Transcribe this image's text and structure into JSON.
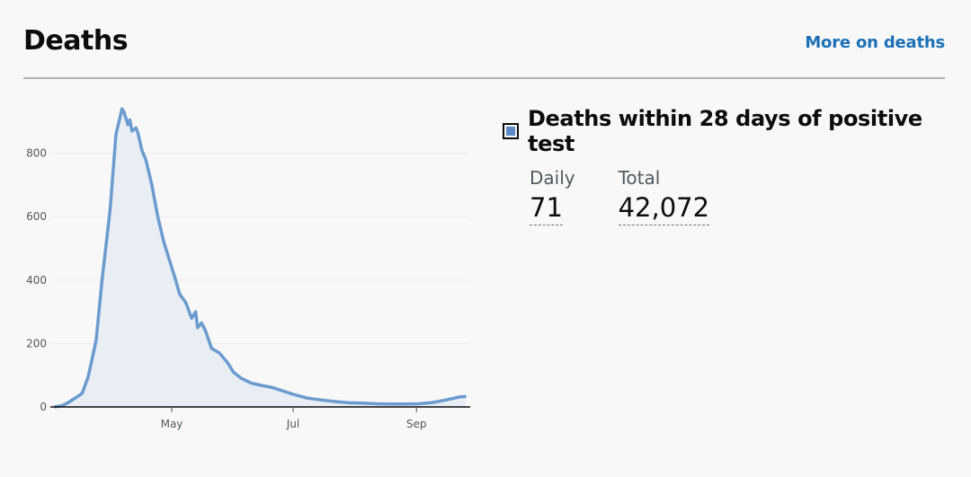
{
  "header": {
    "title": "Deaths",
    "more_link": "More on deaths"
  },
  "metric": {
    "heading": "Deaths within 28 days of positive test",
    "daily_label": "Daily",
    "daily_value": "71",
    "total_label": "Total",
    "total_value": "42,072",
    "legend_color": "#5a8bc6"
  },
  "chart_data": {
    "type": "area",
    "title": "",
    "xlabel": "",
    "ylabel": "",
    "x_ticks": [
      "May",
      "Jul",
      "Sep"
    ],
    "x_tick_positions": [
      "2020-05-01",
      "2020-07-01",
      "2020-09-01"
    ],
    "y_ticks": [
      0,
      200,
      400,
      600,
      800
    ],
    "xlim": [
      "2020-03-01",
      "2020-09-28"
    ],
    "ylim": [
      0,
      1000
    ],
    "grid": true,
    "line_color": "#6b9bcf",
    "fill_color": "#e8eef4",
    "series": [
      {
        "values": [
          [
            "2020-03-03",
            0
          ],
          [
            "2020-03-07",
            4
          ],
          [
            "2020-03-10",
            14
          ],
          [
            "2020-03-14",
            30
          ],
          [
            "2020-03-17",
            43
          ],
          [
            "2020-03-20",
            95
          ],
          [
            "2020-03-24",
            210
          ],
          [
            "2020-03-27",
            400
          ],
          [
            "2020-03-31",
            620
          ],
          [
            "2020-04-03",
            860
          ],
          [
            "2020-04-06",
            940
          ],
          [
            "2020-04-07",
            930
          ],
          [
            "2020-04-09",
            890
          ],
          [
            "2020-04-10",
            905
          ],
          [
            "2020-04-11",
            870
          ],
          [
            "2020-04-13",
            880
          ],
          [
            "2020-04-14",
            865
          ],
          [
            "2020-04-16",
            810
          ],
          [
            "2020-04-18",
            780
          ],
          [
            "2020-04-21",
            700
          ],
          [
            "2020-04-24",
            600
          ],
          [
            "2020-04-27",
            520
          ],
          [
            "2020-04-30",
            460
          ],
          [
            "2020-05-03",
            400
          ],
          [
            "2020-05-05",
            355
          ],
          [
            "2020-05-08",
            330
          ],
          [
            "2020-05-11",
            280
          ],
          [
            "2020-05-13",
            300
          ],
          [
            "2020-05-14",
            250
          ],
          [
            "2020-05-16",
            265
          ],
          [
            "2020-05-18",
            240
          ],
          [
            "2020-05-21",
            185
          ],
          [
            "2020-05-25",
            170
          ],
          [
            "2020-05-29",
            140
          ],
          [
            "2020-06-01",
            110
          ],
          [
            "2020-06-05",
            90
          ],
          [
            "2020-06-10",
            75
          ],
          [
            "2020-06-15",
            68
          ],
          [
            "2020-06-20",
            62
          ],
          [
            "2020-06-25",
            52
          ],
          [
            "2020-07-01",
            40
          ],
          [
            "2020-07-08",
            28
          ],
          [
            "2020-07-15",
            22
          ],
          [
            "2020-07-22",
            17
          ],
          [
            "2020-07-29",
            13
          ],
          [
            "2020-08-05",
            12
          ],
          [
            "2020-08-12",
            10
          ],
          [
            "2020-08-19",
            9
          ],
          [
            "2020-08-26",
            9
          ],
          [
            "2020-09-02",
            10
          ],
          [
            "2020-09-09",
            14
          ],
          [
            "2020-09-16",
            22
          ],
          [
            "2020-09-23",
            32
          ],
          [
            "2020-09-26",
            33
          ]
        ]
      }
    ]
  }
}
